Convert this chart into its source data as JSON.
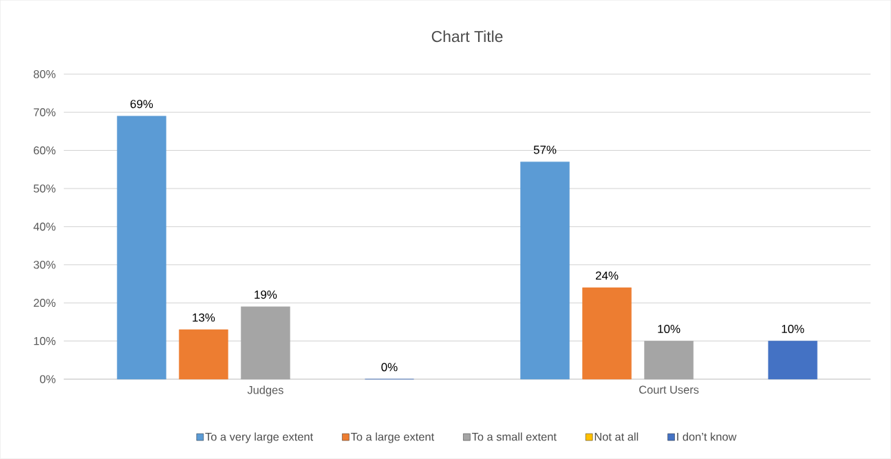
{
  "chart_data": {
    "type": "bar",
    "title": "Chart Title",
    "categories": [
      "Judges",
      "Court Users"
    ],
    "series": [
      {
        "name": "To a very large extent",
        "color": "#5b9bd5",
        "values": [
          69,
          57
        ],
        "value_labels": [
          "69%",
          "57%"
        ]
      },
      {
        "name": "To a large extent",
        "color": "#ed7d31",
        "values": [
          13,
          24
        ],
        "value_labels": [
          "13%",
          "24%"
        ]
      },
      {
        "name": "To a small extent",
        "color": "#a5a5a5",
        "values": [
          19,
          10
        ],
        "value_labels": [
          "19%",
          "10%"
        ]
      },
      {
        "name": "Not at all",
        "color": "#ffc000",
        "values": [
          null,
          null
        ],
        "value_labels": [
          null,
          null
        ]
      },
      {
        "name": "I don’t know",
        "color": "#4472c4",
        "values": [
          0,
          10
        ],
        "value_labels": [
          "0%",
          "10%"
        ]
      }
    ],
    "ylim": [
      0,
      80
    ],
    "yticks": [
      {
        "value": 0,
        "label": "0%"
      },
      {
        "value": 10,
        "label": "10%"
      },
      {
        "value": 20,
        "label": "20%"
      },
      {
        "value": 30,
        "label": "30%"
      },
      {
        "value": 40,
        "label": "40%"
      },
      {
        "value": 50,
        "label": "50%"
      },
      {
        "value": 60,
        "label": "60%"
      },
      {
        "value": 70,
        "label": "70%"
      },
      {
        "value": 80,
        "label": "80%"
      }
    ],
    "grid": "y",
    "legend": "bottom"
  }
}
